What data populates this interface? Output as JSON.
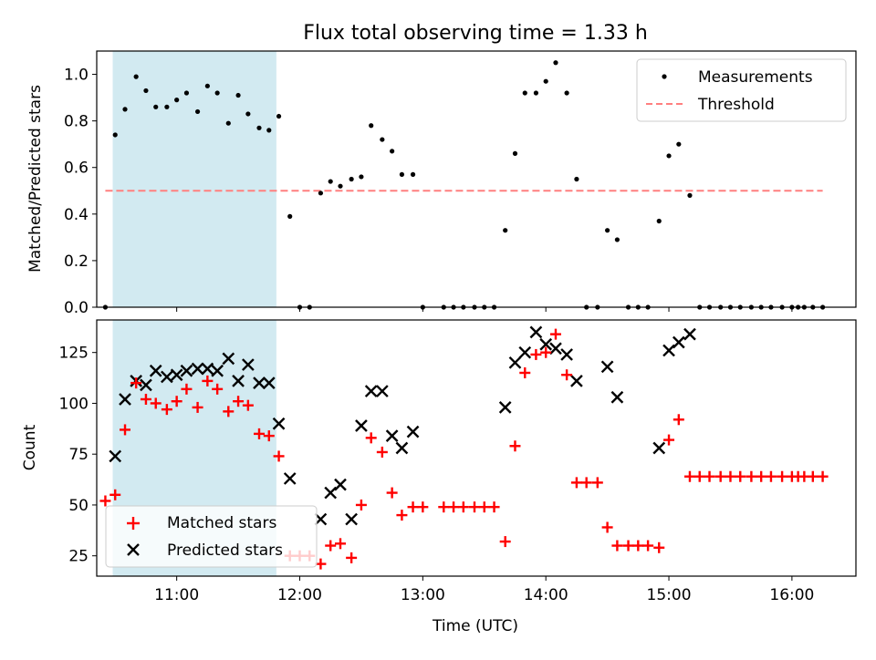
{
  "figure": {
    "title": "Flux total observing time = 1.33 h",
    "xlabel": "Time (UTC)",
    "xticks": [
      {
        "t": 11.0,
        "label": "11:00"
      },
      {
        "t": 12.0,
        "label": "12:00"
      },
      {
        "t": 13.0,
        "label": "13:00"
      },
      {
        "t": 14.0,
        "label": "14:00"
      },
      {
        "t": 15.0,
        "label": "15:00"
      },
      {
        "t": 16.0,
        "label": "16:00"
      }
    ],
    "xlim": [
      10.35,
      16.52
    ],
    "shaded_span": [
      10.48,
      11.81
    ],
    "colors": {
      "shade": "#add8e6",
      "threshold": "#ff7f7f",
      "measure": "#000000",
      "matched": "#ff0000",
      "predicted": "#000000"
    }
  },
  "chart_data": [
    {
      "type": "scatter",
      "ylabel": "Matched/Predicted stars",
      "ylim": [
        0,
        1.1
      ],
      "yticks": [
        "0.0",
        "0.2",
        "0.4",
        "0.6",
        "0.8",
        "1.0"
      ],
      "threshold": {
        "value": 0.5,
        "x_range": [
          10.42,
          16.25
        ]
      },
      "legend": {
        "position": "top-right",
        "entries": [
          "Measurements",
          "Threshold"
        ]
      },
      "series": [
        {
          "name": "Measurements",
          "points": [
            [
              10.42,
              0.0
            ],
            [
              10.5,
              0.74
            ],
            [
              10.58,
              0.85
            ],
            [
              10.67,
              0.99
            ],
            [
              10.75,
              0.93
            ],
            [
              10.83,
              0.86
            ],
            [
              10.92,
              0.86
            ],
            [
              11.0,
              0.89
            ],
            [
              11.08,
              0.92
            ],
            [
              11.17,
              0.84
            ],
            [
              11.25,
              0.95
            ],
            [
              11.33,
              0.92
            ],
            [
              11.42,
              0.79
            ],
            [
              11.5,
              0.91
            ],
            [
              11.58,
              0.83
            ],
            [
              11.67,
              0.77
            ],
            [
              11.75,
              0.76
            ],
            [
              11.83,
              0.82
            ],
            [
              11.92,
              0.39
            ],
            [
              12.0,
              0.0
            ],
            [
              12.08,
              0.0
            ],
            [
              12.17,
              0.49
            ],
            [
              12.25,
              0.54
            ],
            [
              12.33,
              0.52
            ],
            [
              12.42,
              0.55
            ],
            [
              12.5,
              0.56
            ],
            [
              12.58,
              0.78
            ],
            [
              12.67,
              0.72
            ],
            [
              12.75,
              0.67
            ],
            [
              12.83,
              0.57
            ],
            [
              12.92,
              0.57
            ],
            [
              13.0,
              0.0
            ],
            [
              13.17,
              0.0
            ],
            [
              13.25,
              0.0
            ],
            [
              13.33,
              0.0
            ],
            [
              13.42,
              0.0
            ],
            [
              13.5,
              0.0
            ],
            [
              13.58,
              0.0
            ],
            [
              13.67,
              0.33
            ],
            [
              13.75,
              0.66
            ],
            [
              13.83,
              0.92
            ],
            [
              13.92,
              0.92
            ],
            [
              14.0,
              0.97
            ],
            [
              14.08,
              1.05
            ],
            [
              14.17,
              0.92
            ],
            [
              14.25,
              0.55
            ],
            [
              14.33,
              0.0
            ],
            [
              14.42,
              0.0
            ],
            [
              14.5,
              0.33
            ],
            [
              14.58,
              0.29
            ],
            [
              14.67,
              0.0
            ],
            [
              14.75,
              0.0
            ],
            [
              14.83,
              0.0
            ],
            [
              14.92,
              0.37
            ],
            [
              15.0,
              0.65
            ],
            [
              15.08,
              0.7
            ],
            [
              15.17,
              0.48
            ],
            [
              15.25,
              0.0
            ],
            [
              15.33,
              0.0
            ],
            [
              15.42,
              0.0
            ],
            [
              15.5,
              0.0
            ],
            [
              15.58,
              0.0
            ],
            [
              15.67,
              0.0
            ],
            [
              15.75,
              0.0
            ],
            [
              15.83,
              0.0
            ],
            [
              15.92,
              0.0
            ],
            [
              16.0,
              0.0
            ],
            [
              16.05,
              0.0
            ],
            [
              16.1,
              0.0
            ],
            [
              16.17,
              0.0
            ],
            [
              16.25,
              0.0
            ]
          ]
        }
      ]
    },
    {
      "type": "scatter",
      "ylabel": "Count",
      "ylim": [
        15,
        141
      ],
      "yticks": [
        "25",
        "50",
        "75",
        "100",
        "125"
      ],
      "legend": {
        "position": "bottom-left",
        "entries": [
          "Matched stars",
          "Predicted stars"
        ]
      },
      "series": [
        {
          "name": "Matched stars",
          "marker": "+",
          "points": [
            [
              10.42,
              52
            ],
            [
              10.5,
              55
            ],
            [
              10.58,
              87
            ],
            [
              10.67,
              110
            ],
            [
              10.75,
              102
            ],
            [
              10.83,
              100
            ],
            [
              10.92,
              97
            ],
            [
              11.0,
              101
            ],
            [
              11.08,
              107
            ],
            [
              11.17,
              98
            ],
            [
              11.25,
              111
            ],
            [
              11.33,
              107
            ],
            [
              11.42,
              96
            ],
            [
              11.5,
              101
            ],
            [
              11.58,
              99
            ],
            [
              11.67,
              85
            ],
            [
              11.75,
              84
            ],
            [
              11.83,
              74
            ],
            [
              11.92,
              25
            ],
            [
              12.0,
              25
            ],
            [
              12.08,
              25
            ],
            [
              12.17,
              21
            ],
            [
              12.25,
              30
            ],
            [
              12.33,
              31
            ],
            [
              12.42,
              24
            ],
            [
              12.5,
              50
            ],
            [
              12.58,
              83
            ],
            [
              12.67,
              76
            ],
            [
              12.75,
              56
            ],
            [
              12.83,
              45
            ],
            [
              12.92,
              49
            ],
            [
              13.0,
              49
            ],
            [
              13.17,
              49
            ],
            [
              13.25,
              49
            ],
            [
              13.33,
              49
            ],
            [
              13.42,
              49
            ],
            [
              13.5,
              49
            ],
            [
              13.58,
              49
            ],
            [
              13.67,
              32
            ],
            [
              13.75,
              79
            ],
            [
              13.83,
              115
            ],
            [
              13.92,
              124
            ],
            [
              14.0,
              125
            ],
            [
              14.08,
              134
            ],
            [
              14.17,
              114
            ],
            [
              14.25,
              61
            ],
            [
              14.33,
              61
            ],
            [
              14.42,
              61
            ],
            [
              14.5,
              39
            ],
            [
              14.58,
              30
            ],
            [
              14.67,
              30
            ],
            [
              14.75,
              30
            ],
            [
              14.83,
              30
            ],
            [
              14.92,
              29
            ],
            [
              15.0,
              82
            ],
            [
              15.08,
              92
            ],
            [
              15.17,
              64
            ],
            [
              15.25,
              64
            ],
            [
              15.33,
              64
            ],
            [
              15.42,
              64
            ],
            [
              15.5,
              64
            ],
            [
              15.58,
              64
            ],
            [
              15.67,
              64
            ],
            [
              15.75,
              64
            ],
            [
              15.83,
              64
            ],
            [
              15.92,
              64
            ],
            [
              16.0,
              64
            ],
            [
              16.05,
              64
            ],
            [
              16.1,
              64
            ],
            [
              16.17,
              64
            ],
            [
              16.25,
              64
            ]
          ]
        },
        {
          "name": "Predicted stars",
          "marker": "x",
          "points": [
            [
              10.5,
              74
            ],
            [
              10.58,
              102
            ],
            [
              10.67,
              111
            ],
            [
              10.75,
              109
            ],
            [
              10.83,
              116
            ],
            [
              10.92,
              113
            ],
            [
              11.0,
              114
            ],
            [
              11.08,
              116
            ],
            [
              11.17,
              117
            ],
            [
              11.25,
              117
            ],
            [
              11.33,
              116
            ],
            [
              11.42,
              122
            ],
            [
              11.5,
              111
            ],
            [
              11.58,
              119
            ],
            [
              11.67,
              110
            ],
            [
              11.75,
              110
            ],
            [
              11.83,
              90
            ],
            [
              11.92,
              63
            ],
            [
              12.17,
              43
            ],
            [
              12.25,
              56
            ],
            [
              12.33,
              60
            ],
            [
              12.42,
              43
            ],
            [
              12.5,
              89
            ],
            [
              12.58,
              106
            ],
            [
              12.67,
              106
            ],
            [
              12.75,
              84
            ],
            [
              12.83,
              78
            ],
            [
              12.92,
              86
            ],
            [
              13.67,
              98
            ],
            [
              13.75,
              120
            ],
            [
              13.83,
              125
            ],
            [
              13.92,
              135
            ],
            [
              14.0,
              129
            ],
            [
              14.08,
              127
            ],
            [
              14.17,
              124
            ],
            [
              14.25,
              111
            ],
            [
              14.5,
              118
            ],
            [
              14.58,
              103
            ],
            [
              14.92,
              78
            ],
            [
              15.0,
              126
            ],
            [
              15.08,
              130
            ],
            [
              15.17,
              134
            ]
          ]
        }
      ]
    }
  ]
}
